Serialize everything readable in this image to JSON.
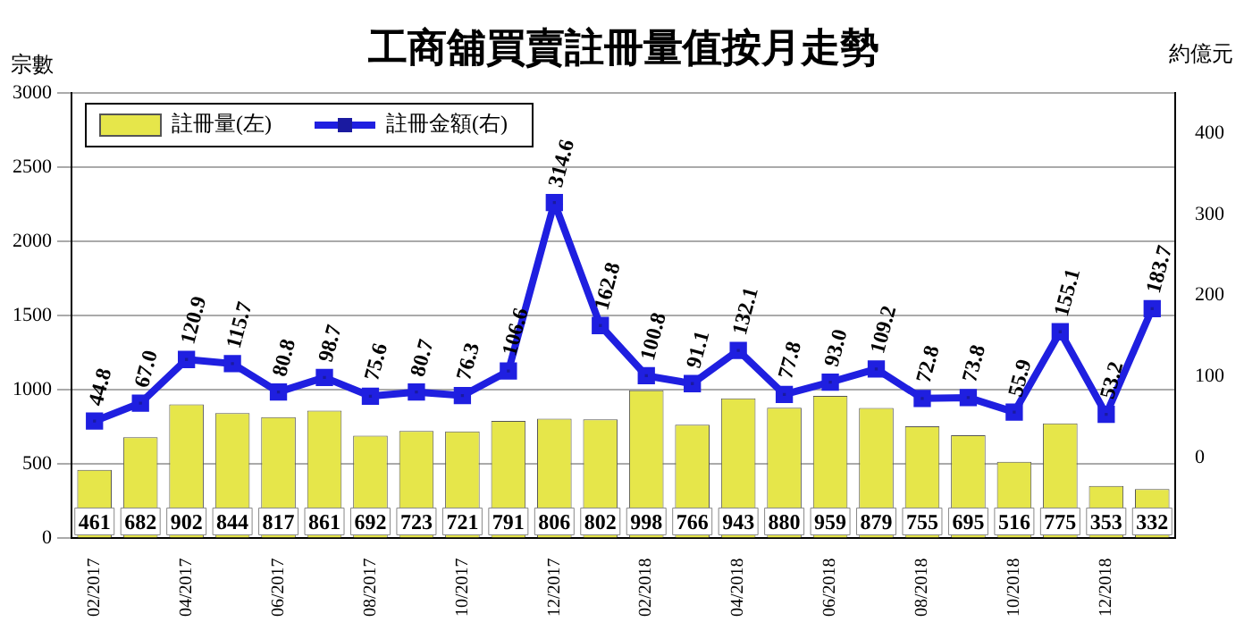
{
  "chart_data": {
    "type": "bar",
    "title": "工商舖買賣註冊量值按月走勢",
    "ylabel": "宗數",
    "y2label": "約億元",
    "categories": [
      "02/2017",
      null,
      "04/2017",
      null,
      "06/2017",
      null,
      "08/2017",
      null,
      "10/2017",
      null,
      "12/2017",
      null,
      "02/2018",
      null,
      "04/2018",
      null,
      "06/2018",
      null,
      "08/2018",
      null,
      "10/2018",
      null,
      "12/2018",
      null
    ],
    "series": [
      {
        "name": "註冊量(左)",
        "color": "#e6e64a",
        "values": [
          461,
          682,
          902,
          844,
          817,
          861,
          692,
          723,
          721,
          791,
          806,
          802,
          998,
          766,
          943,
          880,
          959,
          879,
          755,
          695,
          516,
          775,
          353,
          332
        ],
        "value_labels": [
          "461",
          "682",
          "902",
          "844",
          "817",
          "861",
          "692",
          "723",
          "721",
          "791",
          "806",
          "802",
          "998",
          "766",
          "943",
          "880",
          "959",
          "879",
          "755",
          "695",
          "516",
          "775",
          "353",
          "332"
        ]
      },
      {
        "name": "註冊金額(右)",
        "type": "line",
        "axis": "y2",
        "color": "#1f1fe0",
        "marker": "square",
        "values": [
          44.8,
          67.0,
          120.9,
          115.7,
          80.8,
          98.7,
          75.6,
          80.7,
          76.3,
          106.6,
          314.6,
          162.8,
          100.8,
          91.1,
          132.1,
          77.8,
          93.0,
          109.2,
          72.8,
          73.8,
          55.9,
          155.1,
          53.2,
          183.7
        ],
        "value_labels": [
          "44.8",
          "67.0",
          "120.9",
          "115.7",
          "80.8",
          "98.7",
          "75.6",
          "80.7",
          "76.3",
          "106.6",
          "314.6",
          "162.8",
          "100.8",
          "91.1",
          "132.1",
          "77.8",
          "93.0",
          "109.2",
          "72.8",
          "73.8",
          "55.9",
          "155.1",
          "53.2",
          "183.7"
        ]
      }
    ],
    "ylim": [
      0,
      3000
    ],
    "yticks": [
      0,
      500,
      1000,
      1500,
      2000,
      2500,
      3000
    ],
    "y2lim": [
      -100,
      450
    ],
    "y2ticks": [
      0,
      100,
      200,
      300,
      400
    ],
    "grid": "y",
    "legend": "top left"
  }
}
